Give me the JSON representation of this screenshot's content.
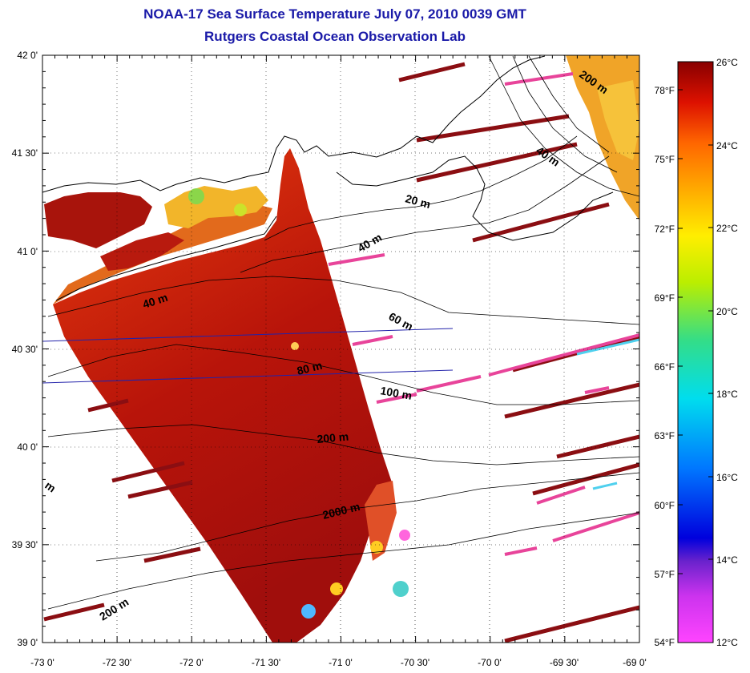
{
  "title": "NOAA-17 Sea Surface Temperature July 07, 2010 0039 GMT",
  "subtitle": "Rutgers Coastal Ocean Observation Lab",
  "lon_ticks": [
    "-73 0'",
    "-72 30'",
    "-72 0'",
    "-71 30'",
    "-71 0'",
    "-70 30'",
    "-70 0'",
    "-69 30'",
    "-69 0'"
  ],
  "lat_ticks": [
    "42 0'",
    "41 30'",
    "41 0'",
    "40 30'",
    "40 0'",
    "39 30'",
    "39 0'"
  ],
  "fahrenheit_ticks": [
    "78°F",
    "75°F",
    "72°F",
    "69°F",
    "66°F",
    "63°F",
    "60°F",
    "57°F",
    "54°F"
  ],
  "celsius_ticks": [
    "26°C",
    "24°C",
    "22°C",
    "20°C",
    "18°C",
    "16°C",
    "14°C",
    "12°C"
  ],
  "contour_labels": [
    "200 m",
    "40 m",
    "20 m",
    "40 m",
    "40 m",
    "60 m",
    "80 m",
    "100 m",
    "200 m",
    "2000 m",
    "m",
    "200 m"
  ],
  "colorbar": {
    "colors": [
      "#ff44ff",
      "#9a33cc",
      "#0000dd",
      "#0077ff",
      "#00ddee",
      "#33dd88",
      "#bbee00",
      "#ffee00",
      "#ffaa00",
      "#ff6600",
      "#dd1100",
      "#880000"
    ]
  },
  "colors": {
    "title": "#1a1aa8",
    "sst_main": "#c81a08",
    "sst_deep": "#a8100a",
    "sst_warm": "#e63c10",
    "swath_stripe": "#8b0e12",
    "swath_pink": "#e8449a"
  }
}
